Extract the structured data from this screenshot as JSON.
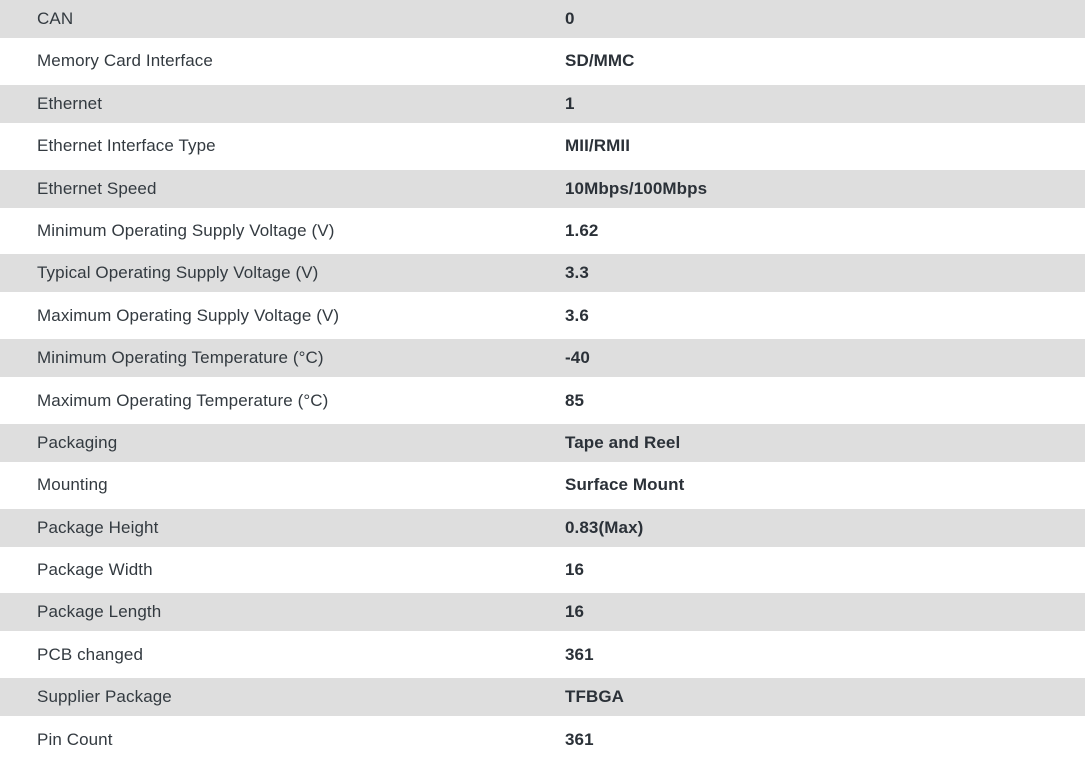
{
  "spec_table": {
    "title": "product-specifications",
    "rows": [
      {
        "label": "CAN",
        "value": "0"
      },
      {
        "label": "Memory Card Interface",
        "value": "SD/MMC"
      },
      {
        "label": "Ethernet",
        "value": "1"
      },
      {
        "label": "Ethernet Interface Type",
        "value": "MII/RMII"
      },
      {
        "label": "Ethernet Speed",
        "value": "10Mbps/100Mbps"
      },
      {
        "label": "Minimum Operating Supply Voltage (V)",
        "value": "1.62"
      },
      {
        "label": "Typical Operating Supply Voltage (V)",
        "value": "3.3"
      },
      {
        "label": "Maximum Operating Supply Voltage (V)",
        "value": "3.6"
      },
      {
        "label": "Minimum Operating Temperature (°C)",
        "value": "-40"
      },
      {
        "label": "Maximum Operating Temperature (°C)",
        "value": "85"
      },
      {
        "label": "Packaging",
        "value": "Tape and Reel"
      },
      {
        "label": "Mounting",
        "value": "Surface Mount"
      },
      {
        "label": "Package Height",
        "value": "0.83(Max)"
      },
      {
        "label": "Package Width",
        "value": "16"
      },
      {
        "label": "Package Length",
        "value": "16"
      },
      {
        "label": "PCB changed",
        "value": "361"
      },
      {
        "label": "Supplier Package",
        "value": "TFBGA"
      },
      {
        "label": "Pin Count",
        "value": "361"
      }
    ],
    "colors": {
      "stripe_bg": "#dedede",
      "row_bg": "#ffffff",
      "label_text": "#333a40",
      "value_text": "#2b3138"
    }
  }
}
